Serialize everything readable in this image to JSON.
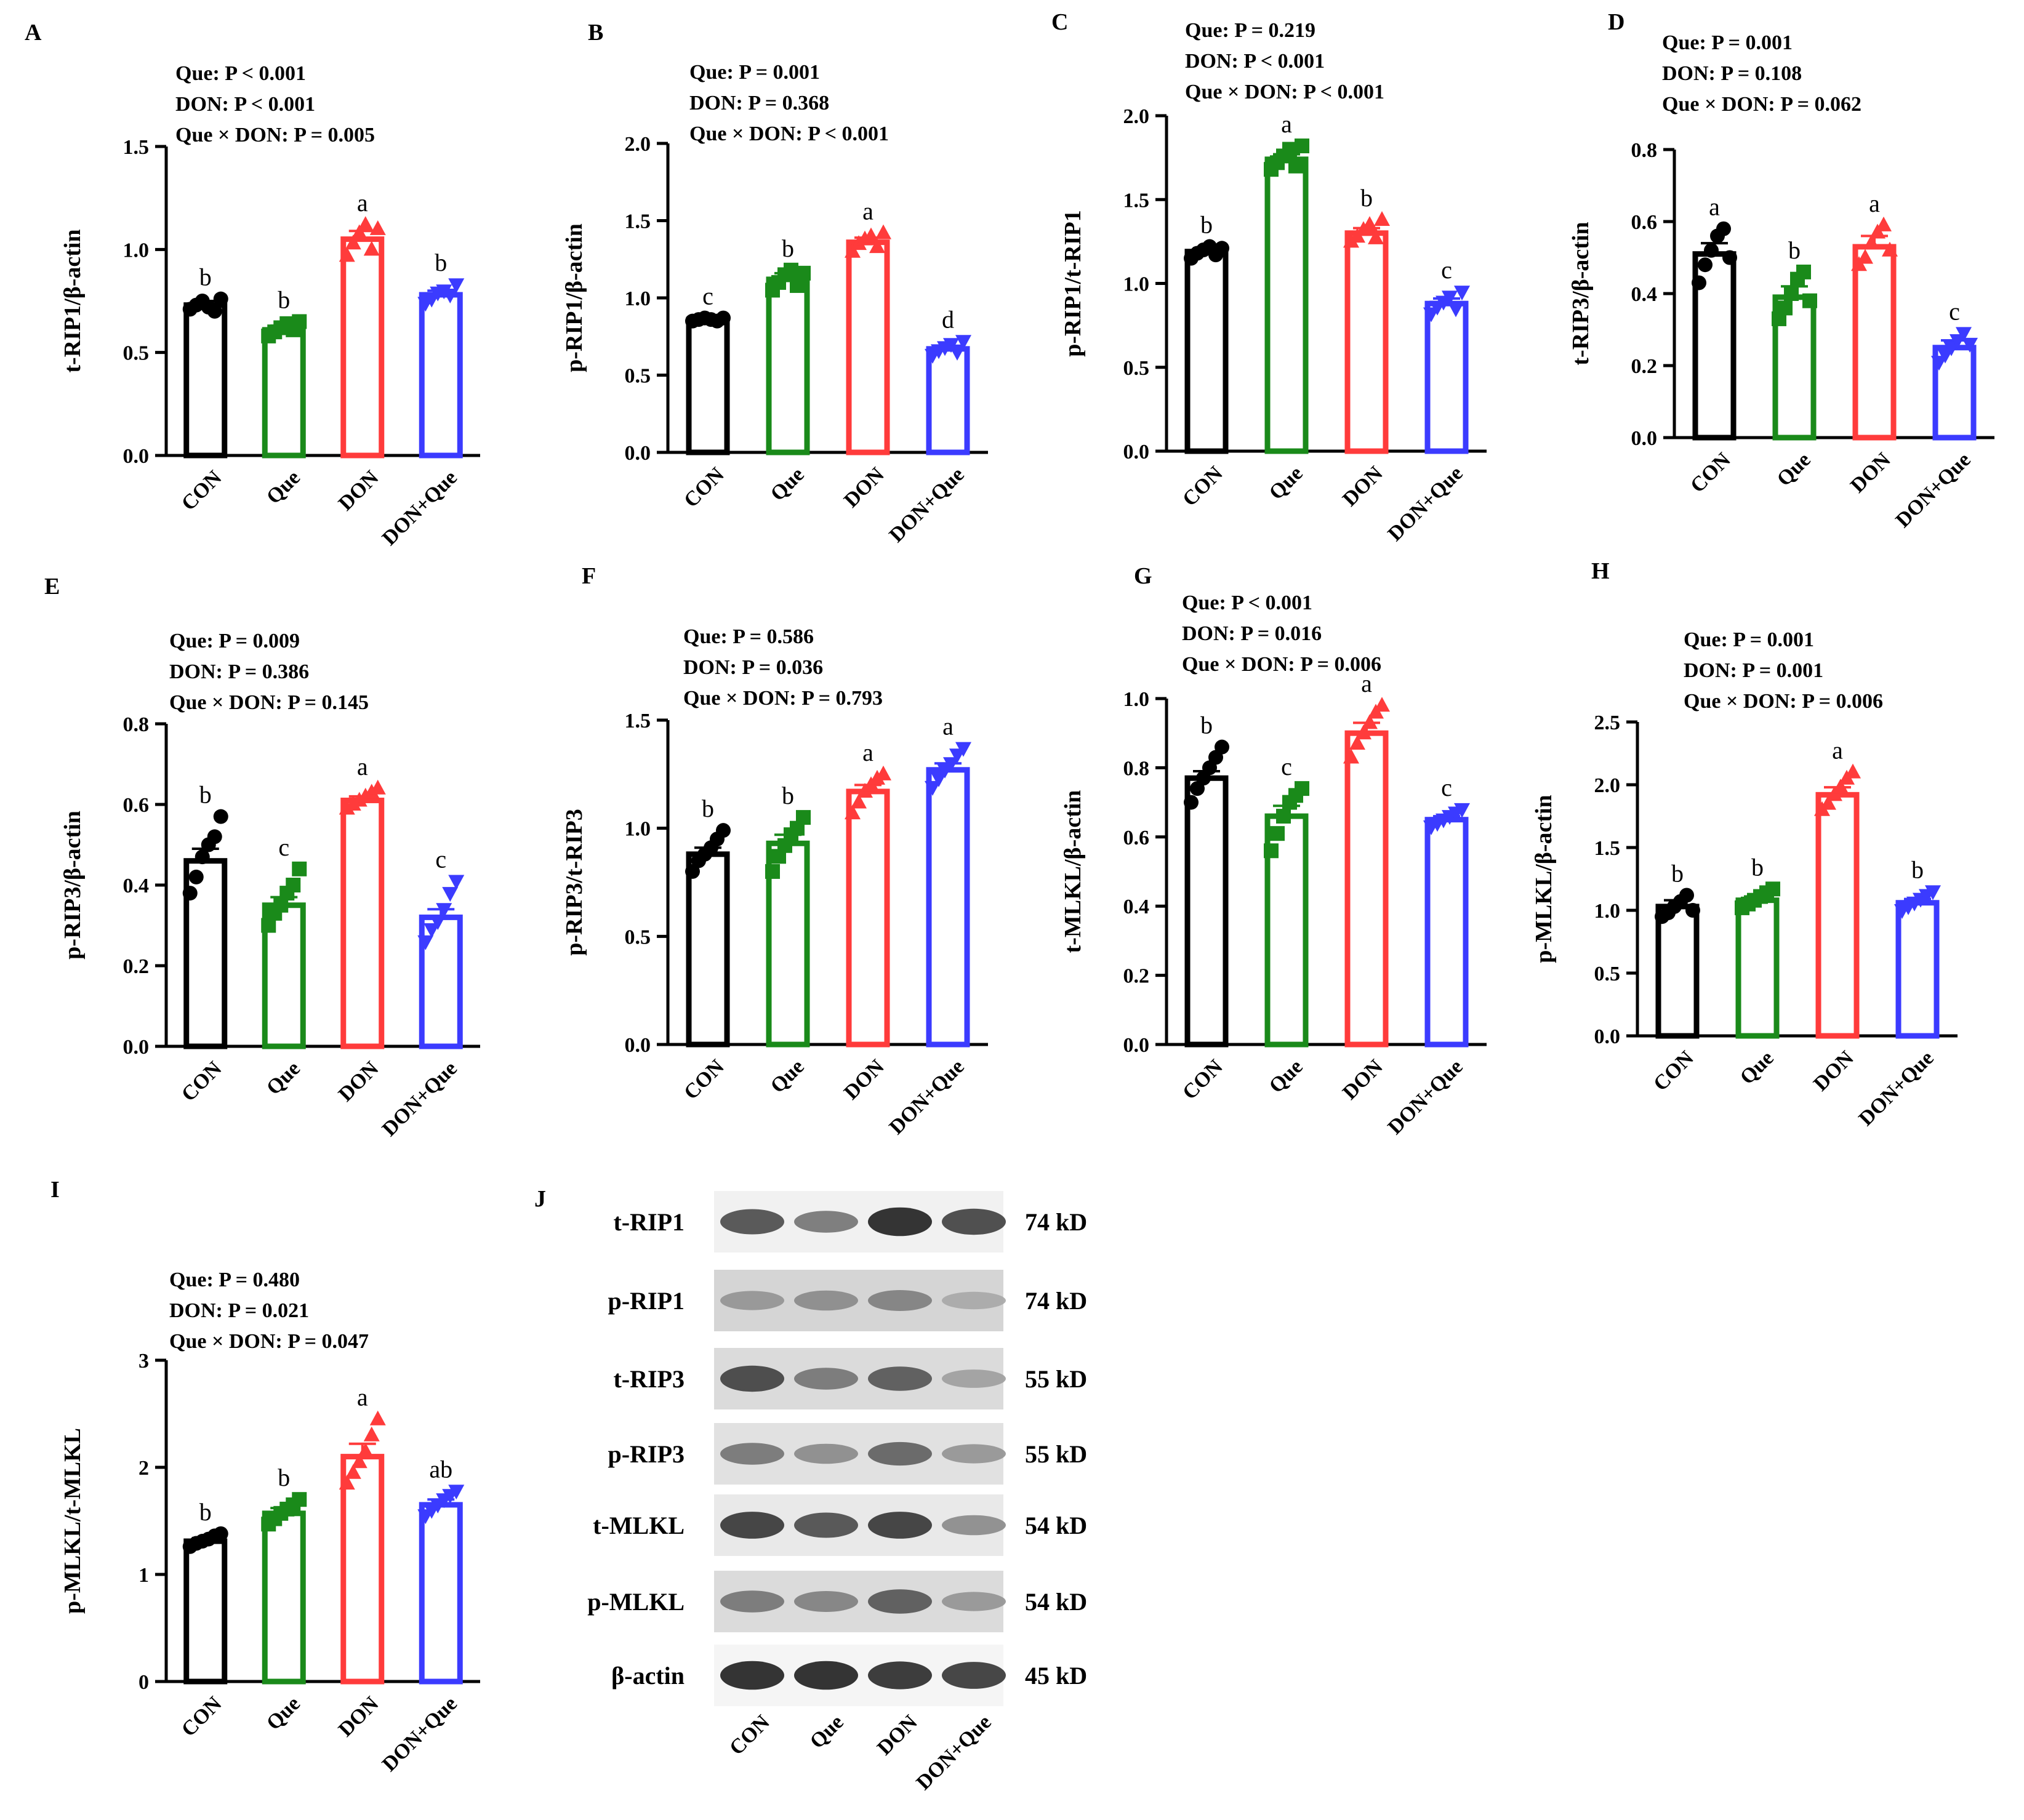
{
  "figure": {
    "title": ""
  },
  "colors": {
    "CON": "#000000",
    "Que": "#1a8a1a",
    "DON": "#ff3b3b",
    "DON+Que": "#3b3bff"
  },
  "markers": {
    "CON": "circle",
    "Que": "square",
    "DON": "triangle-up",
    "DON+Que": "triangle-down"
  },
  "chart_data": [
    {
      "panel": "A",
      "type": "bar",
      "categories": [
        "CON",
        "Que",
        "DON",
        "DON+Que"
      ],
      "values": [
        0.73,
        0.61,
        1.05,
        0.78
      ],
      "errors": [
        0.02,
        0.02,
        0.04,
        0.02
      ],
      "points": [
        [
          0.71,
          0.73,
          0.75,
          0.72,
          0.7,
          0.76
        ],
        [
          0.58,
          0.6,
          0.62,
          0.64,
          0.61,
          0.65
        ],
        [
          0.97,
          1.03,
          1.08,
          1.12,
          1.0,
          1.1
        ],
        [
          0.74,
          0.76,
          0.79,
          0.8,
          0.78,
          0.83
        ]
      ],
      "letters": [
        "b",
        "b",
        "a",
        "b"
      ],
      "ylabel": "t-RIP1/β-actin",
      "ylim": [
        0,
        1.5
      ],
      "yticks": [
        0.0,
        0.5,
        1.0,
        1.5
      ],
      "tick_labels": [
        "0.0",
        "0.5",
        "1.0",
        "1.5"
      ],
      "stats": [
        "Que: P < 0.001",
        "DON:  P < 0.001",
        "Que × DON: P = 0.005"
      ]
    },
    {
      "panel": "B",
      "type": "bar",
      "categories": [
        "CON",
        "Que",
        "DON",
        "DON+Que"
      ],
      "values": [
        0.86,
        1.12,
        1.36,
        0.67
      ],
      "errors": [
        0.01,
        0.04,
        0.03,
        0.02
      ],
      "points": [
        [
          0.85,
          0.86,
          0.87,
          0.86,
          0.85,
          0.87
        ],
        [
          1.05,
          1.1,
          1.15,
          1.18,
          1.08,
          1.16
        ],
        [
          1.3,
          1.35,
          1.38,
          1.4,
          1.33,
          1.42
        ],
        [
          0.63,
          0.66,
          0.68,
          0.7,
          0.65,
          0.72
        ]
      ],
      "letters": [
        "c",
        "b",
        "a",
        "d"
      ],
      "ylabel": "p-RIP1/β-actin",
      "ylim": [
        0,
        2.0
      ],
      "yticks": [
        0.0,
        0.5,
        1.0,
        1.5,
        2.0
      ],
      "tick_labels": [
        "0.0",
        "0.5",
        "1.0",
        "1.5",
        "2.0"
      ],
      "stats": [
        "Que: P = 0.001",
        "DON:  P = 0.368",
        "Que × DON: P < 0.001"
      ]
    },
    {
      "panel": "C",
      "type": "bar",
      "categories": [
        "CON",
        "Que",
        "DON",
        "DON+Que"
      ],
      "values": [
        1.19,
        1.74,
        1.3,
        0.88
      ],
      "errors": [
        0.02,
        0.03,
        0.03,
        0.03
      ],
      "points": [
        [
          1.15,
          1.18,
          1.2,
          1.22,
          1.17,
          1.21
        ],
        [
          1.68,
          1.72,
          1.76,
          1.8,
          1.7,
          1.82
        ],
        [
          1.25,
          1.28,
          1.32,
          1.35,
          1.27,
          1.38
        ],
        [
          0.82,
          0.86,
          0.89,
          0.92,
          0.85,
          0.95
        ]
      ],
      "letters": [
        "b",
        "a",
        "b",
        "c"
      ],
      "ylabel": "p-RIP1/t-RIP1",
      "ylim": [
        0,
        2.0
      ],
      "yticks": [
        0.0,
        0.5,
        1.0,
        1.5,
        2.0
      ],
      "tick_labels": [
        "0.0",
        "0.5",
        "1.0",
        "1.5",
        "2.0"
      ],
      "stats": [
        "Que: P  = 0.219",
        "DON:  P < 0.001",
        "Que × DON: P  < 0.001"
      ]
    },
    {
      "panel": "D",
      "type": "bar",
      "categories": [
        "CON",
        "Que",
        "DON",
        "DON+Que"
      ],
      "values": [
        0.51,
        0.39,
        0.53,
        0.25
      ],
      "errors": [
        0.03,
        0.03,
        0.03,
        0.02
      ],
      "points": [
        [
          0.43,
          0.48,
          0.52,
          0.56,
          0.58,
          0.5
        ],
        [
          0.33,
          0.36,
          0.4,
          0.44,
          0.46,
          0.38
        ],
        [
          0.48,
          0.5,
          0.54,
          0.57,
          0.59,
          0.52
        ],
        [
          0.21,
          0.23,
          0.25,
          0.27,
          0.29,
          0.26
        ]
      ],
      "letters": [
        "a",
        "b",
        "a",
        "c"
      ],
      "ylabel": "t-RIP3/β-actin",
      "ylim": [
        0,
        0.8
      ],
      "yticks": [
        0.0,
        0.2,
        0.4,
        0.6,
        0.8
      ],
      "tick_labels": [
        "0.0",
        "0.2",
        "0.4",
        "0.6",
        "0.8"
      ],
      "stats": [
        "Que: P = 0.001",
        "DON:  P = 0.108",
        "Que × DON: P = 0.062"
      ]
    },
    {
      "panel": "E",
      "type": "bar",
      "categories": [
        "CON",
        "Que",
        "DON",
        "DON+Que"
      ],
      "values": [
        0.46,
        0.35,
        0.61,
        0.32
      ],
      "errors": [
        0.03,
        0.02,
        0.01,
        0.02
      ],
      "points": [
        [
          0.38,
          0.42,
          0.47,
          0.5,
          0.52,
          0.57
        ],
        [
          0.3,
          0.33,
          0.35,
          0.38,
          0.4,
          0.44
        ],
        [
          0.59,
          0.6,
          0.61,
          0.62,
          0.63,
          0.64
        ],
        [
          0.26,
          0.29,
          0.31,
          0.34,
          0.38,
          0.41
        ]
      ],
      "letters": [
        "b",
        "c",
        "a",
        "c"
      ],
      "ylabel": "p-RIP3/β-actin",
      "ylim": [
        0,
        0.8
      ],
      "yticks": [
        0.0,
        0.2,
        0.4,
        0.6,
        0.8
      ],
      "tick_labels": [
        "0.0",
        "0.2",
        "0.4",
        "0.6",
        "0.8"
      ],
      "stats": [
        "Que: P = 0.009",
        "DON:  P = 0.386",
        "Que × DON: P = 0.145"
      ]
    },
    {
      "panel": "F",
      "type": "bar",
      "categories": [
        "CON",
        "Que",
        "DON",
        "DON+Que"
      ],
      "values": [
        0.88,
        0.93,
        1.17,
        1.27
      ],
      "errors": [
        0.03,
        0.04,
        0.03,
        0.03
      ],
      "points": [
        [
          0.8,
          0.85,
          0.88,
          0.91,
          0.95,
          0.99
        ],
        [
          0.8,
          0.87,
          0.92,
          0.97,
          1.0,
          1.05
        ],
        [
          1.07,
          1.12,
          1.17,
          1.2,
          1.23,
          1.25
        ],
        [
          1.19,
          1.23,
          1.27,
          1.3,
          1.34,
          1.37
        ]
      ],
      "letters": [
        "b",
        "b",
        "a",
        "a"
      ],
      "ylabel": "p-RIP3/t-RIP3",
      "ylim": [
        0,
        1.5
      ],
      "yticks": [
        0.0,
        0.5,
        1.0,
        1.5
      ],
      "tick_labels": [
        "0.0",
        "0.5",
        "1.0",
        "1.5"
      ],
      "stats": [
        "Que: P  = 0.586",
        "DON:  P  = 0.036",
        "Que × DON: P  = 0.793"
      ]
    },
    {
      "panel": "G",
      "type": "bar",
      "categories": [
        "CON",
        "Que",
        "DON",
        "DON+Que"
      ],
      "values": [
        0.77,
        0.66,
        0.9,
        0.65
      ],
      "errors": [
        0.02,
        0.03,
        0.03,
        0.01
      ],
      "points": [
        [
          0.7,
          0.74,
          0.77,
          0.8,
          0.83,
          0.86
        ],
        [
          0.56,
          0.61,
          0.66,
          0.7,
          0.72,
          0.74
        ],
        [
          0.83,
          0.87,
          0.9,
          0.93,
          0.96,
          0.98
        ],
        [
          0.63,
          0.64,
          0.65,
          0.66,
          0.67,
          0.68
        ]
      ],
      "letters": [
        "b",
        "c",
        "a",
        "c"
      ],
      "ylabel": "t-MLKL/β-actin",
      "ylim": [
        0,
        1.0
      ],
      "yticks": [
        0.0,
        0.2,
        0.4,
        0.6,
        0.8,
        1.0
      ],
      "tick_labels": [
        "0.0",
        "0.2",
        "0.4",
        "0.6",
        "0.8",
        "1.0"
      ],
      "stats": [
        "Que: P  < 0.001",
        "DON:  P  = 0.016",
        "Que × DON: P  = 0.006"
      ]
    },
    {
      "panel": "H",
      "type": "bar",
      "categories": [
        "CON",
        "Que",
        "DON",
        "DON+Que"
      ],
      "values": [
        1.03,
        1.08,
        1.92,
        1.06
      ],
      "errors": [
        0.05,
        0.03,
        0.06,
        0.03
      ],
      "points": [
        [
          0.95,
          0.98,
          1.03,
          1.07,
          1.12,
          1.0
        ],
        [
          1.02,
          1.05,
          1.08,
          1.11,
          1.14,
          1.17
        ],
        [
          1.8,
          1.85,
          1.92,
          1.98,
          2.05,
          2.1
        ],
        [
          1.0,
          1.03,
          1.06,
          1.09,
          1.12,
          1.15
        ]
      ],
      "letters": [
        "b",
        "b",
        "a",
        "b"
      ],
      "ylabel": "p-MLKL/β-actin",
      "ylim": [
        0,
        2.5
      ],
      "yticks": [
        0.0,
        0.5,
        1.0,
        1.5,
        2.0,
        2.5
      ],
      "tick_labels": [
        "0.0",
        "0.5",
        "1.0",
        "1.5",
        "2.0",
        "2.5"
      ],
      "stats": [
        "Que: P  = 0.001",
        "DON:  P = 0.001",
        "Que × DON: P  = 0.006"
      ]
    },
    {
      "panel": "I",
      "type": "bar",
      "categories": [
        "CON",
        "Que",
        "DON",
        "DON+Que"
      ],
      "values": [
        1.31,
        1.57,
        2.1,
        1.65
      ],
      "errors": [
        0.03,
        0.05,
        0.12,
        0.05
      ],
      "points": [
        [
          1.26,
          1.29,
          1.31,
          1.33,
          1.36,
          1.38
        ],
        [
          1.47,
          1.52,
          1.57,
          1.61,
          1.65,
          1.7
        ],
        [
          1.85,
          1.95,
          2.05,
          2.15,
          2.3,
          2.45
        ],
        [
          1.55,
          1.6,
          1.65,
          1.7,
          1.74,
          1.78
        ]
      ],
      "letters": [
        "b",
        "b",
        "a",
        "ab"
      ],
      "ylabel": "p-MLKL/t-MLKL",
      "ylim": [
        0,
        3
      ],
      "yticks": [
        0,
        1,
        2,
        3
      ],
      "tick_labels": [
        "0",
        "1",
        "2",
        "3"
      ],
      "stats": [
        "Que: P  = 0.480",
        "DON:  P  = 0.021",
        "Que × DON: P  = 0.047"
      ]
    }
  ],
  "blot": {
    "panel": "J",
    "lanes": [
      "CON",
      "Que",
      "DON",
      "DON+Que"
    ],
    "rows": [
      {
        "protein": "t-RIP1",
        "size": "74 kD",
        "intensity": [
          0.75,
          0.55,
          0.95,
          0.8
        ],
        "bg": 0.12
      },
      {
        "protein": "p-RIP1",
        "size": "74 kD",
        "intensity": [
          0.4,
          0.45,
          0.5,
          0.3
        ],
        "bg": 0.35
      },
      {
        "protein": "t-RIP3",
        "size": "55 kD",
        "intensity": [
          0.8,
          0.55,
          0.7,
          0.35
        ],
        "bg": 0.3
      },
      {
        "protein": "p-RIP3",
        "size": "55 kD",
        "intensity": [
          0.55,
          0.45,
          0.65,
          0.4
        ],
        "bg": 0.25
      },
      {
        "protein": "t-MLKL",
        "size": "54 kD",
        "intensity": [
          0.85,
          0.75,
          0.85,
          0.45
        ],
        "bg": 0.18
      },
      {
        "protein": "p-MLKL",
        "size": "54 kD",
        "intensity": [
          0.55,
          0.5,
          0.7,
          0.4
        ],
        "bg": 0.3
      },
      {
        "protein": "β-actin",
        "size": "45 kD",
        "intensity": [
          0.95,
          0.95,
          0.9,
          0.85
        ],
        "bg": 0.08
      }
    ]
  }
}
